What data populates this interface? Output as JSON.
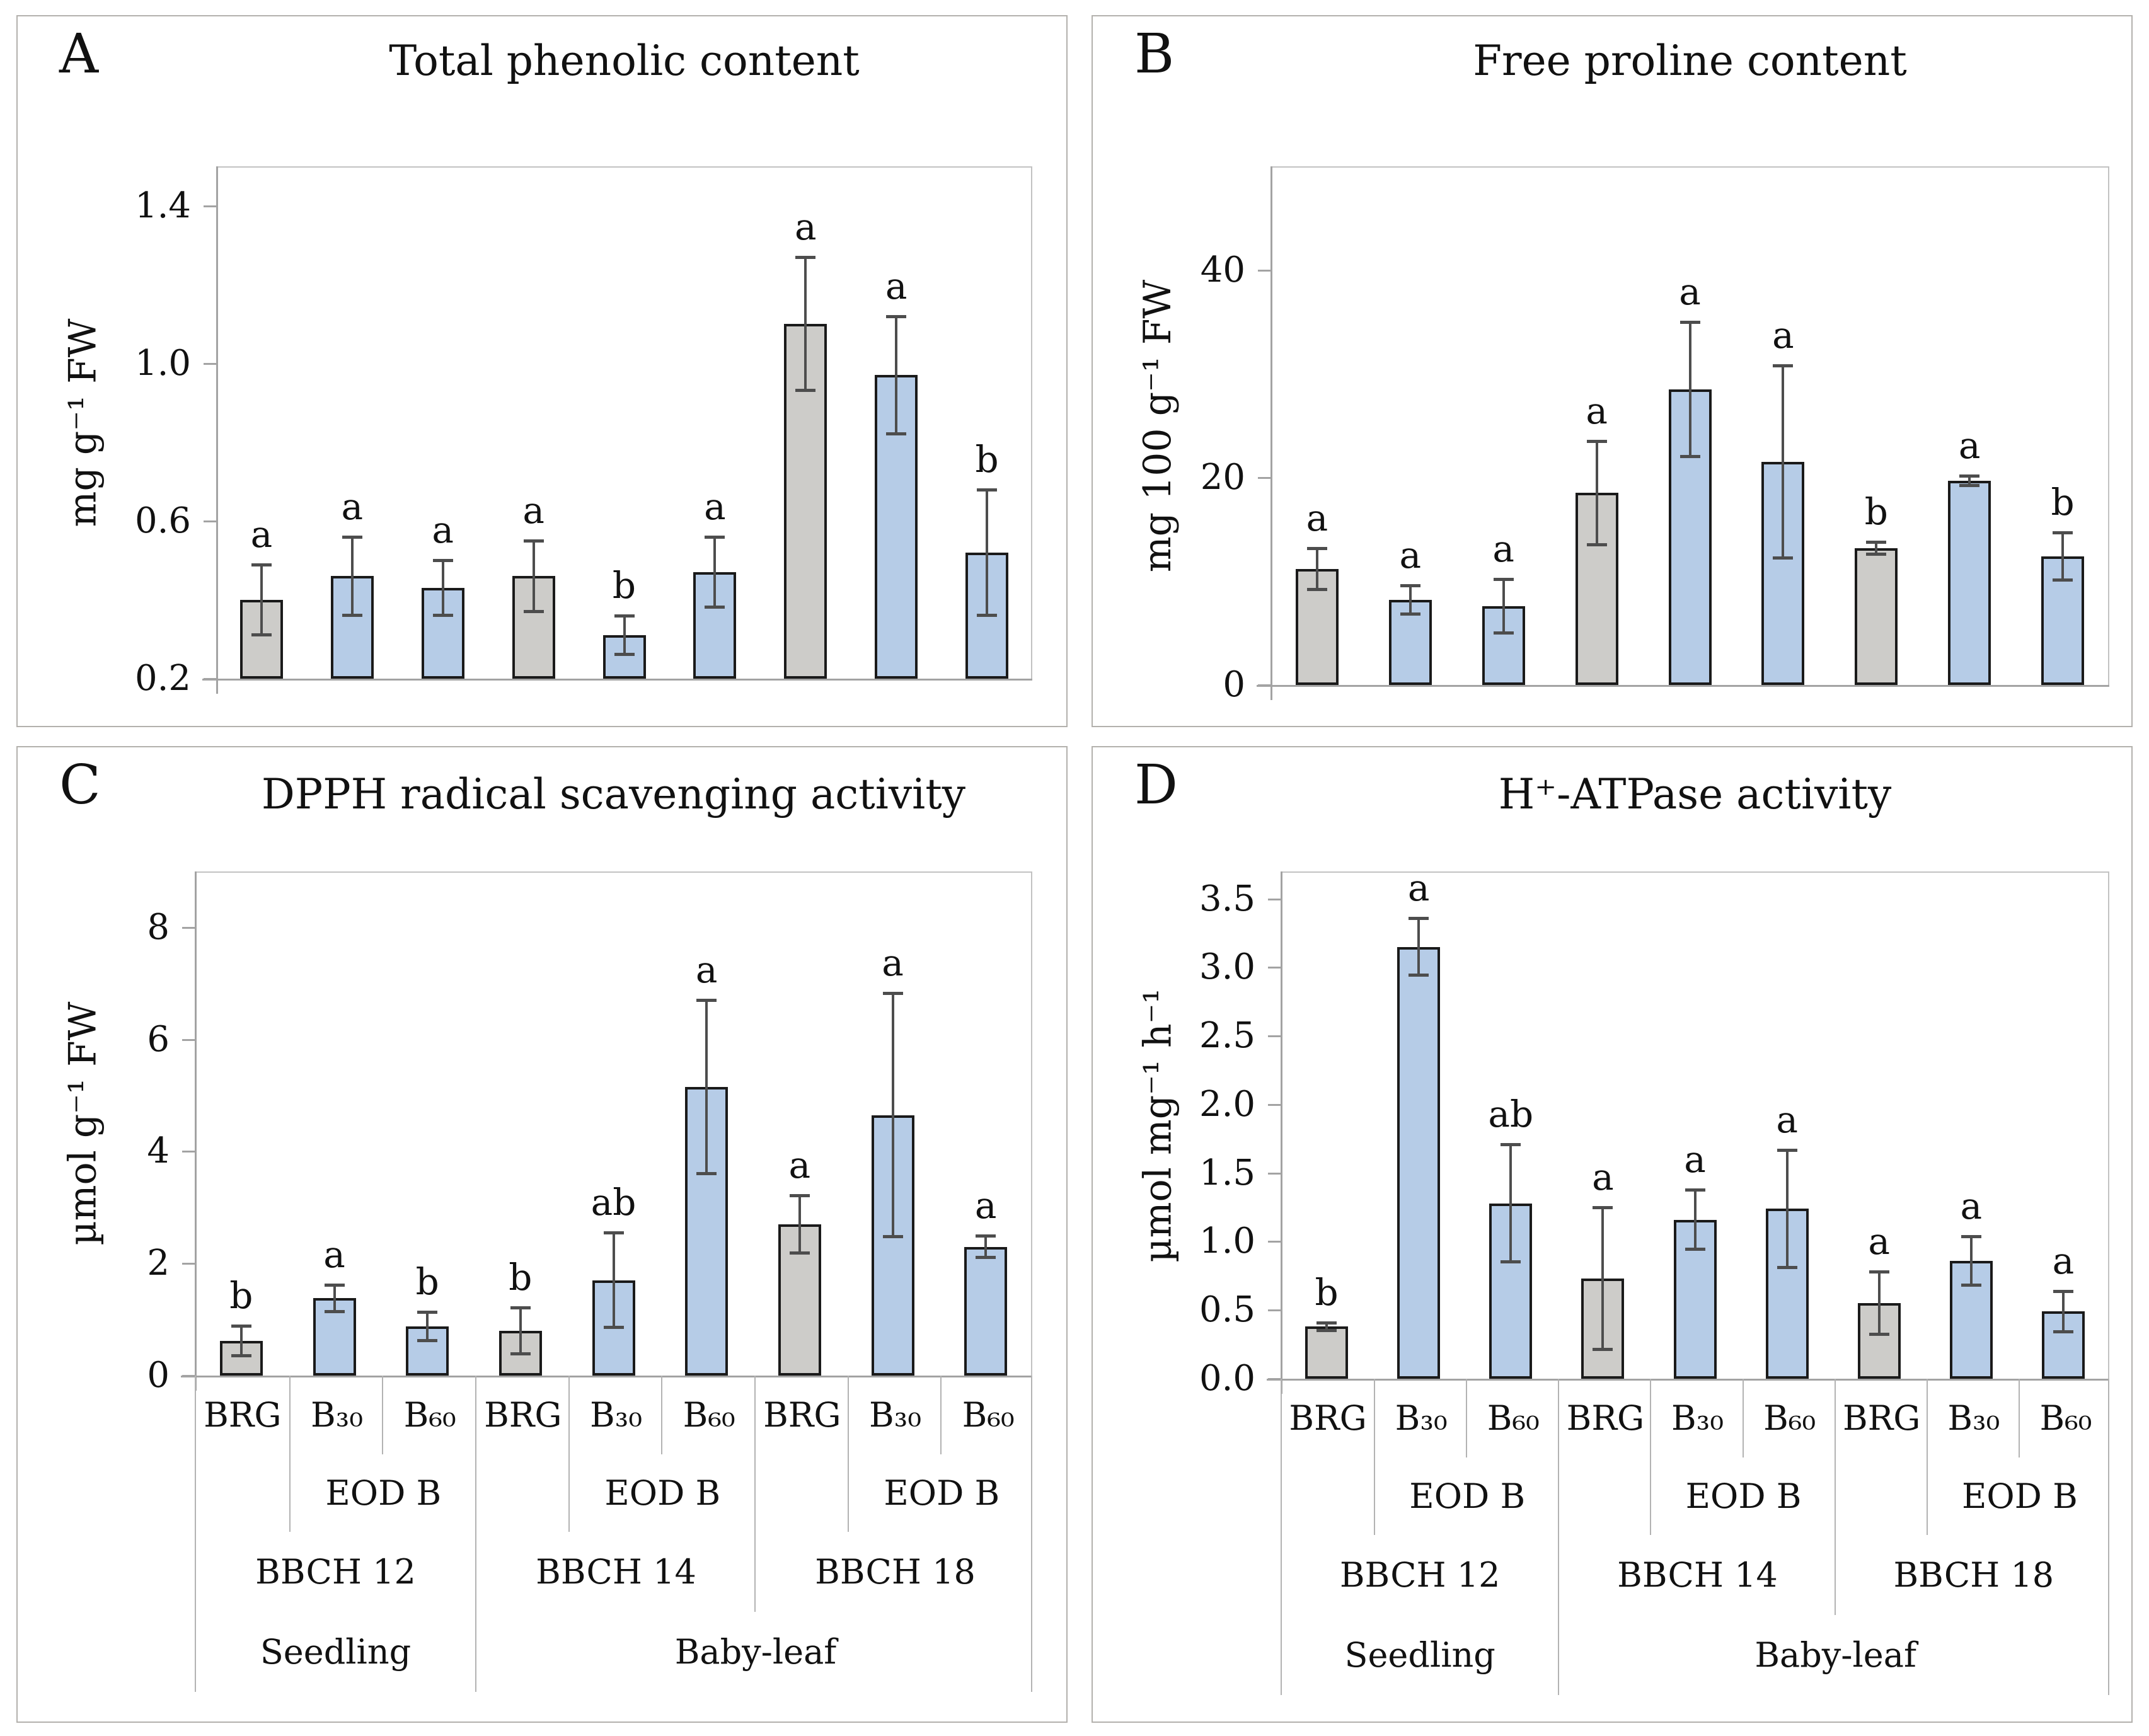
{
  "figure_name": "Four-panel bar chart figure",
  "colors": {
    "gray_bar_fill": "#cdccc9",
    "blue_bar_fill": "#b6cce7",
    "bar_border": "#1a1a1a",
    "error_bar": "#4d4d4d",
    "axis_line": "#a3a3a3",
    "plot_border": "#c2c2c2",
    "table_line": "#b3b3b3",
    "panel_border": "#b3b1ad"
  },
  "axis_categories": {
    "treatments": [
      "BRG",
      "B₃₀",
      "B₆₀"
    ],
    "eod_label": "EOD B",
    "groups": [
      "BBCH 12",
      "BBCH 14",
      "BBCH 18"
    ],
    "stages": [
      "Seedling",
      "Baby-leaf"
    ]
  },
  "chart_data": [
    {
      "panel": "A",
      "type": "bar",
      "title": "Total phenolic content",
      "ylabel": "mg g⁻¹ FW",
      "ymin": 0.2,
      "ymax": 1.5,
      "yticks": [
        {
          "v": 1.4,
          "label": "1.4"
        },
        {
          "v": 1.0,
          "label": "1.0"
        },
        {
          "v": 0.6,
          "label": "0.6"
        },
        {
          "v": 0.2,
          "label": "0.2"
        }
      ],
      "groups": [
        "BBCH 12",
        "BBCH 14",
        "BBCH 18"
      ],
      "categories": [
        "BRG",
        "B₃₀",
        "B₆₀",
        "BRG",
        "B₃₀",
        "B₆₀",
        "BRG",
        "B₃₀",
        "B₆₀"
      ],
      "values": [
        0.4,
        0.46,
        0.43,
        0.46,
        0.31,
        0.47,
        1.1,
        0.97,
        0.52
      ],
      "errors": [
        0.09,
        0.1,
        0.07,
        0.09,
        0.05,
        0.09,
        0.17,
        0.15,
        0.16
      ],
      "sig_letters": [
        "a",
        "a",
        "a",
        "a",
        "b",
        "a",
        "a",
        "a",
        "b"
      ],
      "bar_styles": [
        "gray",
        "blue",
        "blue",
        "gray",
        "blue",
        "blue",
        "gray",
        "blue",
        "blue"
      ],
      "show_category_axis": false
    },
    {
      "panel": "B",
      "type": "bar",
      "title": "Free proline content",
      "ylabel": "mg 100 g⁻¹ FW",
      "ymin": 0,
      "ymax": 50,
      "yticks": [
        {
          "v": 40,
          "label": "40"
        },
        {
          "v": 20,
          "label": "20"
        },
        {
          "v": 0,
          "label": "0"
        }
      ],
      "groups": [
        "BBCH 12",
        "BBCH 14",
        "BBCH 18"
      ],
      "categories": [
        "BRG",
        "B₃₀",
        "B₆₀",
        "BRG",
        "B₃₀",
        "B₆₀",
        "BRG",
        "B₃₀",
        "B₆₀"
      ],
      "values": [
        11.2,
        8.2,
        7.6,
        18.5,
        28.5,
        21.5,
        13.2,
        19.7,
        12.4
      ],
      "errors": [
        2.0,
        1.4,
        2.6,
        5.0,
        6.5,
        9.3,
        0.6,
        0.5,
        2.3
      ],
      "sig_letters": [
        "a",
        "a",
        "a",
        "a",
        "a",
        "a",
        "b",
        "a",
        "b"
      ],
      "bar_styles": [
        "gray",
        "blue",
        "blue",
        "gray",
        "blue",
        "blue",
        "gray",
        "blue",
        "blue"
      ],
      "show_category_axis": false
    },
    {
      "panel": "C",
      "type": "bar",
      "title": "DPPH radical scavenging activity",
      "ylabel": "µmol g⁻¹ FW",
      "ymin": 0,
      "ymax": 9,
      "yticks": [
        {
          "v": 8,
          "label": "8"
        },
        {
          "v": 6,
          "label": "6"
        },
        {
          "v": 4,
          "label": "4"
        },
        {
          "v": 2,
          "label": "2"
        },
        {
          "v": 0,
          "label": "0"
        }
      ],
      "groups": [
        "BBCH 12",
        "BBCH 14",
        "BBCH 18"
      ],
      "categories": [
        "BRG",
        "B₃₀",
        "B₆₀",
        "BRG",
        "B₃₀",
        "B₆₀",
        "BRG",
        "B₃₀",
        "B₆₀"
      ],
      "values": [
        0.62,
        1.38,
        0.88,
        0.8,
        1.7,
        5.15,
        2.7,
        4.65,
        2.3
      ],
      "errors": [
        0.27,
        0.24,
        0.26,
        0.42,
        0.85,
        1.55,
        0.52,
        2.18,
        0.2
      ],
      "sig_letters": [
        "b",
        "a",
        "b",
        "b",
        "ab",
        "a",
        "a",
        "a",
        "a"
      ],
      "bar_styles": [
        "gray",
        "blue",
        "blue",
        "gray",
        "blue",
        "blue",
        "gray",
        "blue",
        "blue"
      ],
      "show_category_axis": true
    },
    {
      "panel": "D",
      "type": "bar",
      "title": "H⁺-ATPase activity",
      "ylabel": "µmol mg⁻¹ h⁻¹",
      "ymin": 0,
      "ymax": 3.7,
      "yticks": [
        {
          "v": 3.5,
          "label": "3.5"
        },
        {
          "v": 3.0,
          "label": "3.0"
        },
        {
          "v": 2.5,
          "label": "2.5"
        },
        {
          "v": 2.0,
          "label": "2.0"
        },
        {
          "v": 1.5,
          "label": "1.5"
        },
        {
          "v": 1.0,
          "label": "1.0"
        },
        {
          "v": 0.5,
          "label": "0.5"
        },
        {
          "v": 0.0,
          "label": "0.0"
        }
      ],
      "groups": [
        "BBCH 12",
        "BBCH 14",
        "BBCH 18"
      ],
      "categories": [
        "BRG",
        "B₃₀",
        "B₆₀",
        "BRG",
        "B₃₀",
        "B₆₀",
        "BRG",
        "B₃₀",
        "B₆₀"
      ],
      "values": [
        0.38,
        3.15,
        1.28,
        0.73,
        1.16,
        1.24,
        0.55,
        0.86,
        0.49
      ],
      "errors": [
        0.03,
        0.21,
        0.43,
        0.52,
        0.22,
        0.43,
        0.23,
        0.18,
        0.15
      ],
      "sig_letters": [
        "b",
        "a",
        "ab",
        "a",
        "a",
        "a",
        "a",
        "a",
        "a"
      ],
      "bar_styles": [
        "gray",
        "blue",
        "blue",
        "gray",
        "blue",
        "blue",
        "gray",
        "blue",
        "blue"
      ],
      "show_category_axis": true
    }
  ]
}
